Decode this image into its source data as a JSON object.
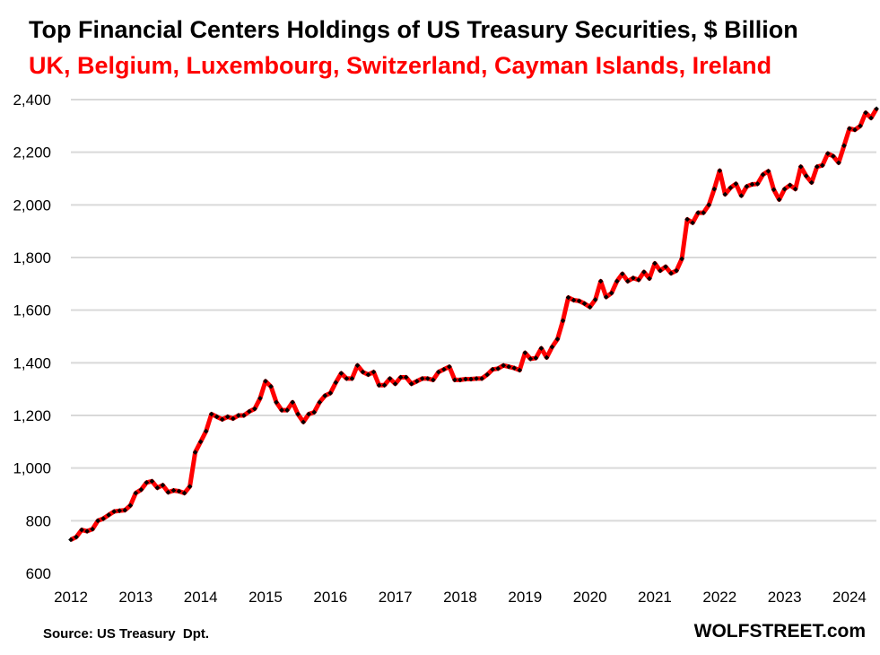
{
  "chart_data": {
    "type": "line",
    "title": "Top Financial Centers Holdings of US Treasury Securities, $ Billion",
    "subtitle": "UK, Belgium, Luxembourg, Switzerland, Cayman Islands, Ireland",
    "xlabel": "",
    "ylabel": "",
    "ylim": [
      600,
      2400
    ],
    "yticks": [
      "600",
      "800",
      "1,000",
      "1,200",
      "1,400",
      "1,600",
      "1,800",
      "2,000",
      "2,200",
      "2,400"
    ],
    "ytick_values": [
      600,
      800,
      1000,
      1200,
      1400,
      1600,
      1800,
      2000,
      2200,
      2400
    ],
    "xticks": [
      "2012",
      "2013",
      "2014",
      "2015",
      "2016",
      "2017",
      "2018",
      "2019",
      "2020",
      "2021",
      "2022",
      "2023",
      "2024"
    ],
    "xlim": [
      2012,
      2024.45
    ],
    "grid": "horizontal",
    "series": [
      {
        "name": "Holdings",
        "color": "#ff0000",
        "marker_color": "#000000",
        "start_year": 2012,
        "frequency": "monthly",
        "values": [
          728,
          738,
          765,
          760,
          768,
          800,
          808,
          822,
          835,
          838,
          840,
          858,
          905,
          918,
          945,
          950,
          925,
          935,
          908,
          915,
          912,
          905,
          930,
          1060,
          1100,
          1140,
          1205,
          1195,
          1185,
          1195,
          1188,
          1200,
          1200,
          1215,
          1225,
          1265,
          1330,
          1310,
          1250,
          1220,
          1220,
          1250,
          1205,
          1175,
          1205,
          1212,
          1250,
          1275,
          1285,
          1325,
          1360,
          1340,
          1340,
          1390,
          1365,
          1355,
          1365,
          1315,
          1315,
          1340,
          1320,
          1345,
          1345,
          1320,
          1330,
          1340,
          1340,
          1335,
          1365,
          1375,
          1385,
          1335,
          1335,
          1338,
          1338,
          1340,
          1340,
          1355,
          1375,
          1378,
          1390,
          1385,
          1380,
          1372,
          1438,
          1415,
          1418,
          1455,
          1420,
          1460,
          1490,
          1560,
          1648,
          1638,
          1635,
          1625,
          1612,
          1640,
          1710,
          1650,
          1665,
          1710,
          1738,
          1710,
          1722,
          1715,
          1745,
          1720,
          1778,
          1750,
          1765,
          1740,
          1750,
          1795,
          1945,
          1932,
          1970,
          1970,
          2000,
          2060,
          2130,
          2040,
          2065,
          2080,
          2035,
          2070,
          2078,
          2080,
          2115,
          2128,
          2058,
          2020,
          2060,
          2075,
          2060,
          2145,
          2110,
          2085,
          2145,
          2150,
          2195,
          2185,
          2160,
          2225,
          2290,
          2285,
          2300,
          2350,
          2330,
          2365
        ]
      }
    ]
  },
  "footer": {
    "source": "Source: US Treasury  Dpt.",
    "brand": "WOLFSTREET.com"
  }
}
